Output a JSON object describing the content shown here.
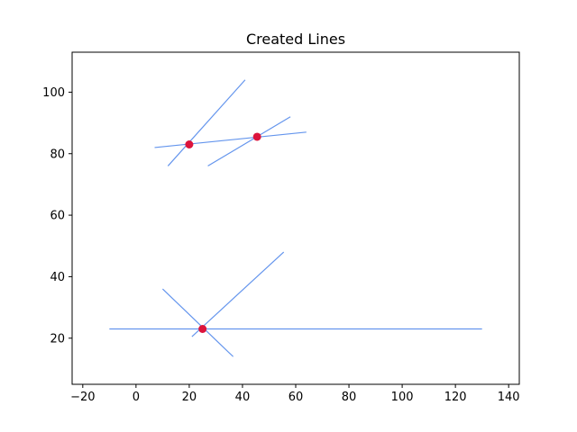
{
  "chart_data": {
    "type": "line",
    "title": "Created Lines",
    "xlabel": "",
    "ylabel": "",
    "xlim": [
      -24,
      144
    ],
    "ylim": [
      5,
      113
    ],
    "xticks": [
      -20,
      0,
      20,
      40,
      60,
      80,
      100,
      120,
      140
    ],
    "yticks": [
      20,
      40,
      60,
      80,
      100
    ],
    "grid": false,
    "line_color": "#6495ED",
    "point_color": "#DC143C",
    "lines": [
      {
        "x": [
          12,
          41
        ],
        "y": [
          76,
          104
        ]
      },
      {
        "x": [
          7,
          64
        ],
        "y": [
          82,
          87
        ]
      },
      {
        "x": [
          27,
          58
        ],
        "y": [
          76,
          92
        ]
      },
      {
        "x": [
          -10,
          130
        ],
        "y": [
          23,
          23
        ]
      },
      {
        "x": [
          21,
          55.5
        ],
        "y": [
          20.5,
          48
        ]
      },
      {
        "x": [
          10,
          36.5
        ],
        "y": [
          36,
          14
        ]
      }
    ],
    "points": [
      {
        "x": 20,
        "y": 83
      },
      {
        "x": 45.5,
        "y": 85.5
      },
      {
        "x": 25,
        "y": 23
      }
    ]
  }
}
